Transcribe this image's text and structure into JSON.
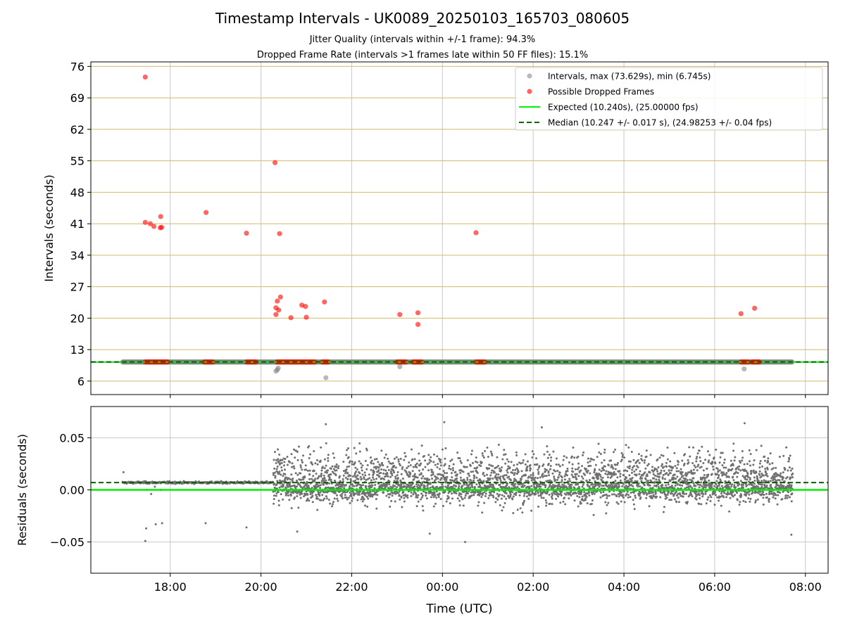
{
  "header": {
    "title": "Timestamp Intervals - UK0089_20250103_165703_080605",
    "subtitle1": "Jitter Quality (intervals within +/-1 frame): 94.3%",
    "subtitle2": "Dropped Frame Rate (intervals >1 frames late within 50 FF files): 15.1%"
  },
  "colors": {
    "interval_points": "#808080",
    "dropped_points": "#ff0000",
    "expected_line": "#00ee00",
    "median_line": "#006400",
    "y_grid": "#d4b96a",
    "x_grid": "#c8c8c8",
    "residual_points": "#707070"
  },
  "chart_data": [
    {
      "type": "scatter",
      "ylabel": "Intervals (seconds)",
      "xlabel": "",
      "x_unit": "hours since 00:00 UTC on the first day",
      "xlim": [
        16.25,
        32.5
      ],
      "ylim": [
        3.0,
        77.0
      ],
      "yticks": [
        6,
        13,
        20,
        27,
        34,
        41,
        48,
        55,
        62,
        69,
        76
      ],
      "xticks": [
        18,
        20,
        22,
        24,
        26,
        28,
        30,
        32
      ],
      "xtick_labels": [
        "18:00",
        "20:00",
        "22:00",
        "00:00",
        "02:00",
        "04:00",
        "06:00",
        "08:00"
      ],
      "grid": true,
      "legend_position": "top-right",
      "legend": [
        "Intervals, max (73.629s), min (6.745s)",
        "Possible Dropped Frames",
        "Expected (10.240s), (25.00000 fps)",
        "Median (10.247 +/- 0.017 s), (24.98253 +/- 0.04 fps)"
      ],
      "expected_interval": 10.24,
      "median_interval": 10.247,
      "interval_range": [
        16.95,
        31.72
      ],
      "intervals_low": [
        {
          "x": 20.33,
          "y": 8.2
        },
        {
          "x": 20.36,
          "y": 8.5
        },
        {
          "x": 20.38,
          "y": 8.9
        },
        {
          "x": 21.43,
          "y": 6.745
        },
        {
          "x": 23.06,
          "y": 9.2
        },
        {
          "x": 30.65,
          "y": 8.7
        }
      ],
      "dropped_frames": [
        {
          "x": 17.45,
          "y": 73.629
        },
        {
          "x": 17.45,
          "y": 41.3
        },
        {
          "x": 17.56,
          "y": 41.0
        },
        {
          "x": 17.64,
          "y": 40.4
        },
        {
          "x": 17.78,
          "y": 40.1
        },
        {
          "x": 17.81,
          "y": 40.2
        },
        {
          "x": 17.79,
          "y": 42.6
        },
        {
          "x": 18.79,
          "y": 43.5
        },
        {
          "x": 19.68,
          "y": 38.9
        },
        {
          "x": 20.31,
          "y": 54.6
        },
        {
          "x": 20.41,
          "y": 38.8
        },
        {
          "x": 20.43,
          "y": 24.7
        },
        {
          "x": 20.36,
          "y": 23.8
        },
        {
          "x": 20.33,
          "y": 22.3
        },
        {
          "x": 20.39,
          "y": 21.8
        },
        {
          "x": 20.33,
          "y": 20.8
        },
        {
          "x": 20.66,
          "y": 20.1
        },
        {
          "x": 20.9,
          "y": 22.9
        },
        {
          "x": 20.98,
          "y": 22.6
        },
        {
          "x": 21.0,
          "y": 20.2
        },
        {
          "x": 21.4,
          "y": 23.6
        },
        {
          "x": 23.06,
          "y": 20.8
        },
        {
          "x": 23.46,
          "y": 21.2
        },
        {
          "x": 23.46,
          "y": 18.6
        },
        {
          "x": 24.74,
          "y": 39.0
        },
        {
          "x": 30.58,
          "y": 21.0
        },
        {
          "x": 30.88,
          "y": 22.2
        }
      ],
      "dropped_at_baseline_ranges": [
        [
          17.45,
          17.95
        ],
        [
          18.75,
          18.95
        ],
        [
          19.68,
          19.9
        ],
        [
          20.35,
          20.65
        ],
        [
          20.65,
          20.85
        ],
        [
          20.88,
          21.1
        ],
        [
          21.1,
          21.2
        ],
        [
          21.35,
          21.5
        ],
        [
          23.0,
          23.2
        ],
        [
          23.35,
          23.55
        ],
        [
          24.74,
          24.95
        ],
        [
          30.58,
          30.75
        ],
        [
          30.82,
          31.0
        ]
      ]
    },
    {
      "type": "scatter",
      "ylabel": "Residuals (seconds)",
      "xlabel": "Time (UTC)",
      "xlim": [
        16.25,
        32.5
      ],
      "ylim": [
        -0.08,
        0.08
      ],
      "yticks": [
        0.05,
        0.0,
        -0.05
      ],
      "ytick_labels": [
        "0.05",
        "0.00",
        "−0.05"
      ],
      "xticks": [
        18,
        20,
        22,
        24,
        26,
        28,
        30,
        32
      ],
      "xtick_labels": [
        "18:00",
        "20:00",
        "22:00",
        "00:00",
        "02:00",
        "04:00",
        "06:00",
        "08:00"
      ],
      "grid": true,
      "expected_residual": 0.0,
      "median_residual": 0.007,
      "quiet_period": {
        "x_range": [
          16.95,
          20.27
        ],
        "level": 0.007,
        "spread": 0.0015
      },
      "noisy_period": {
        "x_range": [
          20.27,
          31.72
        ],
        "mean": 0.012,
        "spread": 0.02,
        "range": [
          -0.05,
          0.065
        ]
      },
      "quiet_outliers": [
        {
          "x": 16.97,
          "y": 0.017
        },
        {
          "x": 17.45,
          "y": -0.049
        },
        {
          "x": 17.47,
          "y": -0.037
        },
        {
          "x": 17.58,
          "y": -0.004
        },
        {
          "x": 17.68,
          "y": -0.033
        },
        {
          "x": 17.82,
          "y": -0.032
        },
        {
          "x": 17.48,
          "y": 0.0
        },
        {
          "x": 18.78,
          "y": -0.032
        },
        {
          "x": 19.68,
          "y": -0.036
        },
        {
          "x": 17.66,
          "y": 0.003
        },
        {
          "x": 17.79,
          "y": 0.0
        }
      ],
      "noisy_outliers": [
        {
          "x": 23.72,
          "y": -0.042
        },
        {
          "x": 24.5,
          "y": -0.05
        },
        {
          "x": 24.04,
          "y": 0.065
        },
        {
          "x": 21.43,
          "y": 0.063
        },
        {
          "x": 30.66,
          "y": 0.064
        },
        {
          "x": 26.19,
          "y": 0.06
        },
        {
          "x": 31.69,
          "y": -0.043
        },
        {
          "x": 20.8,
          "y": -0.04
        }
      ]
    }
  ]
}
